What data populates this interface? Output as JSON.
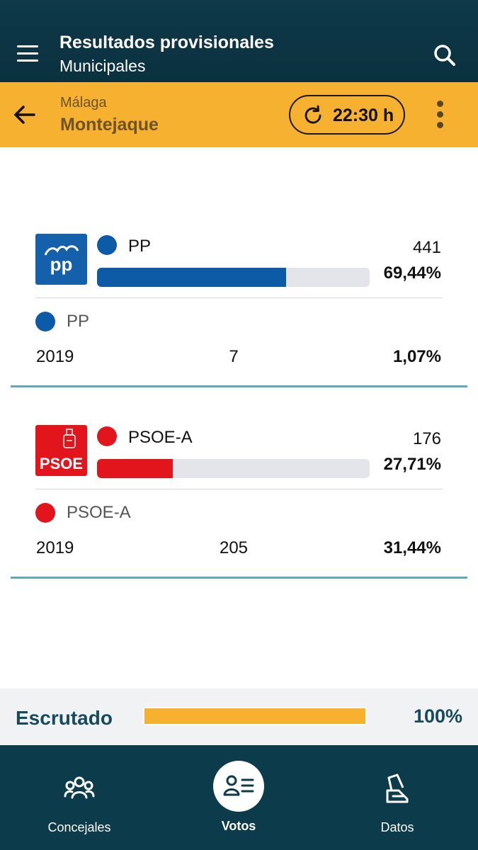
{
  "header": {
    "title": "Resultados provisionales",
    "subtitle": "Municipales"
  },
  "location": {
    "province": "Málaga",
    "town": "Montejaque",
    "update_time": "22:30 h"
  },
  "parties": [
    {
      "name": "PP",
      "logo_text": "pp",
      "color": "#0d5aa7",
      "votes": "441",
      "percent": "69,44%",
      "share": 0.6944,
      "previous": {
        "name": "PP",
        "year": "2019",
        "votes": "7",
        "percent": "1,07%"
      }
    },
    {
      "name": "PSOE-A",
      "logo_text": "PSOE",
      "color": "#e2151c",
      "votes": "176",
      "percent": "27,71%",
      "share": 0.2771,
      "previous": {
        "name": "PSOE-A",
        "year": "2019",
        "votes": "205",
        "percent": "31,44%"
      }
    }
  ],
  "scrutiny": {
    "label": "Escrutado",
    "percent": "100%",
    "share": 1.0
  },
  "nav": {
    "items": [
      {
        "label": "Concejales",
        "icon": "people-group-icon"
      },
      {
        "label": "Votos",
        "icon": "vote-list-icon",
        "active": true
      },
      {
        "label": "Datos",
        "icon": "ballot-box-icon"
      }
    ]
  }
}
